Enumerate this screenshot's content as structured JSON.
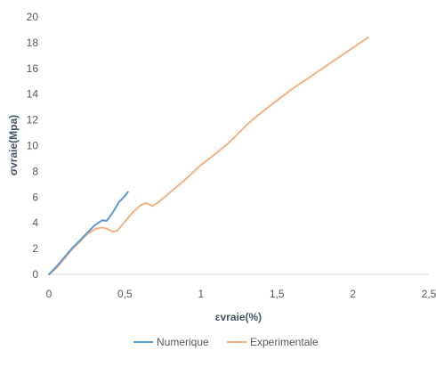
{
  "chart_data": {
    "type": "line",
    "title": "",
    "xlabel": "εvraie(%)",
    "ylabel": "σvraie(Mpa)",
    "xlim": [
      0,
      2.5
    ],
    "ylim": [
      0,
      20
    ],
    "x_ticks": [
      "0",
      "0,5",
      "1",
      "1,5",
      "2",
      "2,5"
    ],
    "y_ticks": [
      "0",
      "2",
      "4",
      "6",
      "8",
      "10",
      "12",
      "14",
      "16",
      "18",
      "20"
    ],
    "grid": false,
    "legend_position": "bottom",
    "series": [
      {
        "name": "Numerique",
        "color": "#5b9bd5",
        "points": [
          [
            0,
            0
          ],
          [
            0.05,
            0.6
          ],
          [
            0.1,
            1.3
          ],
          [
            0.15,
            2.0
          ],
          [
            0.2,
            2.6
          ],
          [
            0.25,
            3.2
          ],
          [
            0.3,
            3.8
          ],
          [
            0.35,
            4.2
          ],
          [
            0.38,
            4.15
          ],
          [
            0.42,
            4.8
          ],
          [
            0.46,
            5.6
          ],
          [
            0.5,
            6.1
          ],
          [
            0.52,
            6.4
          ]
        ]
      },
      {
        "name": "Experimentale",
        "color": "#f4b183",
        "points": [
          [
            0,
            0
          ],
          [
            0.05,
            0.5
          ],
          [
            0.1,
            1.2
          ],
          [
            0.15,
            1.9
          ],
          [
            0.2,
            2.5
          ],
          [
            0.25,
            3.1
          ],
          [
            0.3,
            3.5
          ],
          [
            0.35,
            3.65
          ],
          [
            0.38,
            3.55
          ],
          [
            0.42,
            3.3
          ],
          [
            0.45,
            3.4
          ],
          [
            0.5,
            4.1
          ],
          [
            0.55,
            4.8
          ],
          [
            0.6,
            5.35
          ],
          [
            0.64,
            5.55
          ],
          [
            0.68,
            5.3
          ],
          [
            0.72,
            5.6
          ],
          [
            0.8,
            6.4
          ],
          [
            0.9,
            7.4
          ],
          [
            1.0,
            8.5
          ],
          [
            1.1,
            9.4
          ],
          [
            1.2,
            10.4
          ],
          [
            1.3,
            11.6
          ],
          [
            1.4,
            12.6
          ],
          [
            1.5,
            13.5
          ],
          [
            1.6,
            14.4
          ],
          [
            1.7,
            15.2
          ],
          [
            1.8,
            16.0
          ],
          [
            1.9,
            16.8
          ],
          [
            2.0,
            17.6
          ],
          [
            2.1,
            18.4
          ]
        ]
      }
    ]
  }
}
